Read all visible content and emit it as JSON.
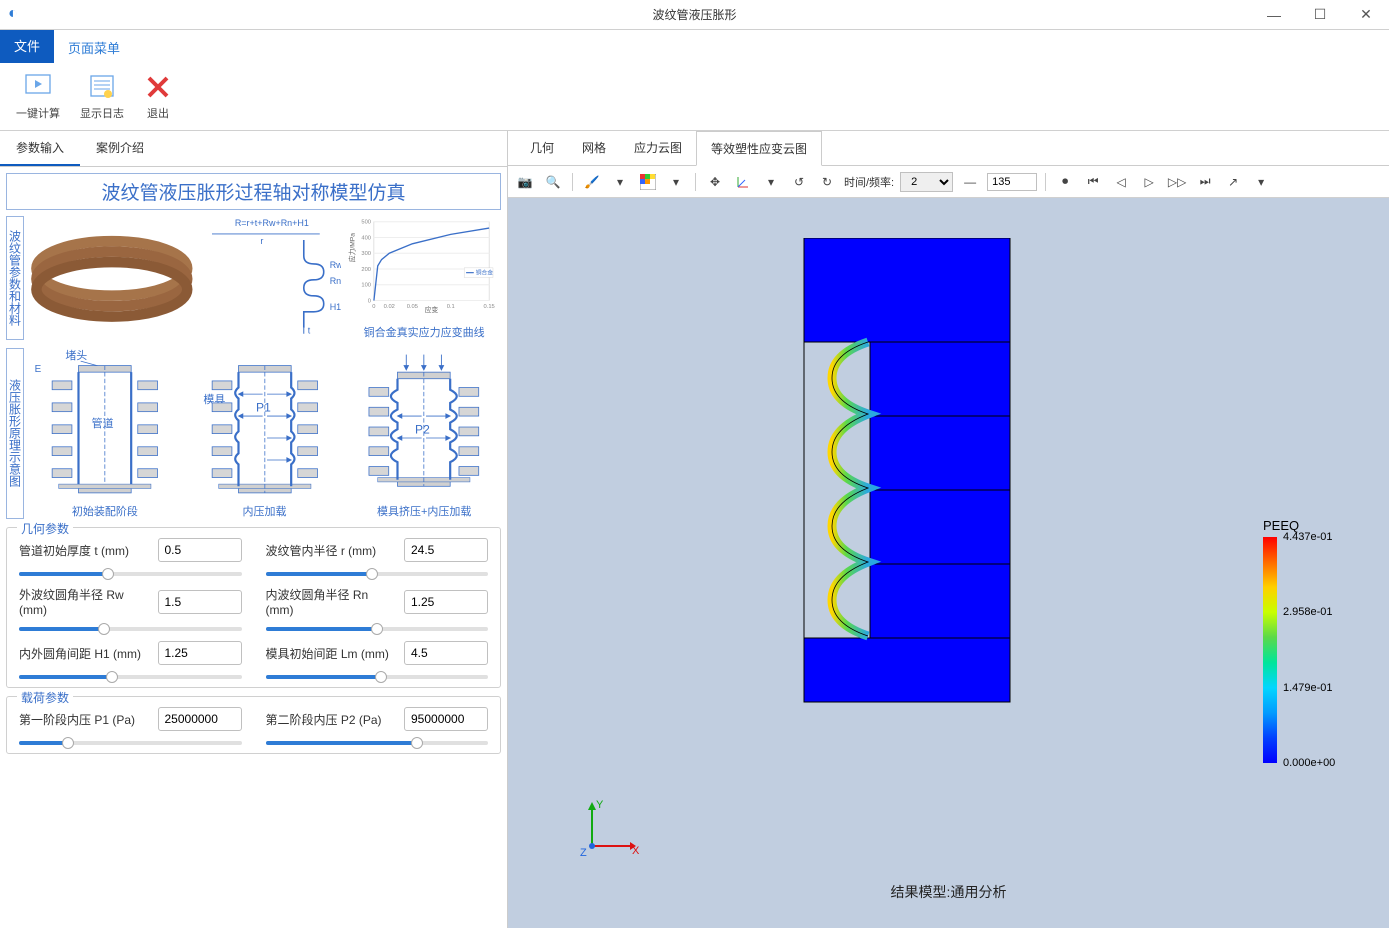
{
  "window": {
    "title": "波纹管液压胀形"
  },
  "menu": {
    "file": "文件",
    "page": "页面菜单"
  },
  "ribbon": {
    "compute": "一键计算",
    "log": "显示日志",
    "exit": "退出"
  },
  "left_tabs": {
    "params": "参数输入",
    "case": "案例介绍"
  },
  "sim_title": "波纹管液压胀形过程轴对称模型仿真",
  "diagram_labels": {
    "row1": "波纹管参数和材料",
    "row2": "液压胀形原理示意图",
    "formula": "R=r+t+Rw+Rn+H1",
    "r_label": "r",
    "t_label": "t",
    "rw": "Rw",
    "rn": "Rn",
    "h1": "H1",
    "curve_caption": "铜合金真实应力应变曲线",
    "curve_legend": "铜合金",
    "curve_ylabel": "应力/MPa",
    "curve_xlabel": "应变",
    "plug": "堵头",
    "pipe": "管道",
    "die": "模具",
    "p1": "P1",
    "p2": "P2",
    "phase1": "初始装配阶段",
    "phase2": "内压加载",
    "phase3": "模具挤压+内压加载"
  },
  "curve_chart": {
    "ylim": [
      0,
      500
    ],
    "ytick_step": 100,
    "xlim": [
      0,
      0.15
    ],
    "xticks": [
      0,
      0.02,
      0.05,
      0.1,
      0.15
    ],
    "line_color": "#3a6fc8",
    "points": [
      [
        0,
        0
      ],
      [
        0.005,
        220
      ],
      [
        0.01,
        260
      ],
      [
        0.02,
        300
      ],
      [
        0.05,
        360
      ],
      [
        0.1,
        420
      ],
      [
        0.15,
        460
      ]
    ]
  },
  "geom_group": {
    "title": "几何参数",
    "params": [
      {
        "label": "管道初始厚度 t (mm)",
        "value": "0.5",
        "slider_pct": 40
      },
      {
        "label": "波纹管内半径 r (mm)",
        "value": "24.5",
        "slider_pct": 48
      },
      {
        "label": "外波纹圆角半径 Rw (mm)",
        "value": "1.5",
        "slider_pct": 38
      },
      {
        "label": "内波纹圆角半径 Rn (mm)",
        "value": "1.25",
        "slider_pct": 50
      },
      {
        "label": "内外圆角间距 H1 (mm)",
        "value": "1.25",
        "slider_pct": 42
      },
      {
        "label": "模具初始间距 Lm (mm)",
        "value": "4.5",
        "slider_pct": 52
      }
    ]
  },
  "load_group": {
    "title": "载荷参数",
    "params": [
      {
        "label": "第一阶段内压 P1 (Pa)",
        "value": "25000000",
        "slider_pct": 22
      },
      {
        "label": "第二阶段内压 P2 (Pa)",
        "value": "95000000",
        "slider_pct": 68
      }
    ]
  },
  "right_tabs": {
    "geom": "几何",
    "mesh": "网格",
    "stress": "应力云图",
    "peeq": "等效塑性应变云图"
  },
  "viewer_toolbar": {
    "time_label": "时间/频率:",
    "frame_select": "2",
    "spin_value": "135"
  },
  "viewer": {
    "model_caption": "结果模型:通用分析",
    "bg_color": "#c1cee0",
    "body_color": "#0000ff",
    "edge_color": "#000000",
    "bellows_colors": {
      "inner": "#ffd700",
      "mid": "#5bd94a",
      "outer": "#2aa8e0"
    }
  },
  "legend": {
    "title": "PEEQ",
    "ticks": [
      "4.437e-01",
      "2.958e-01",
      "1.479e-01",
      "0.000e+00"
    ],
    "colors": [
      "#ff0000",
      "#ff6a00",
      "#ffd000",
      "#c8ff00",
      "#5bd94a",
      "#00e59a",
      "#00d6ff",
      "#009bff",
      "#0040ff",
      "#0000ff"
    ]
  }
}
